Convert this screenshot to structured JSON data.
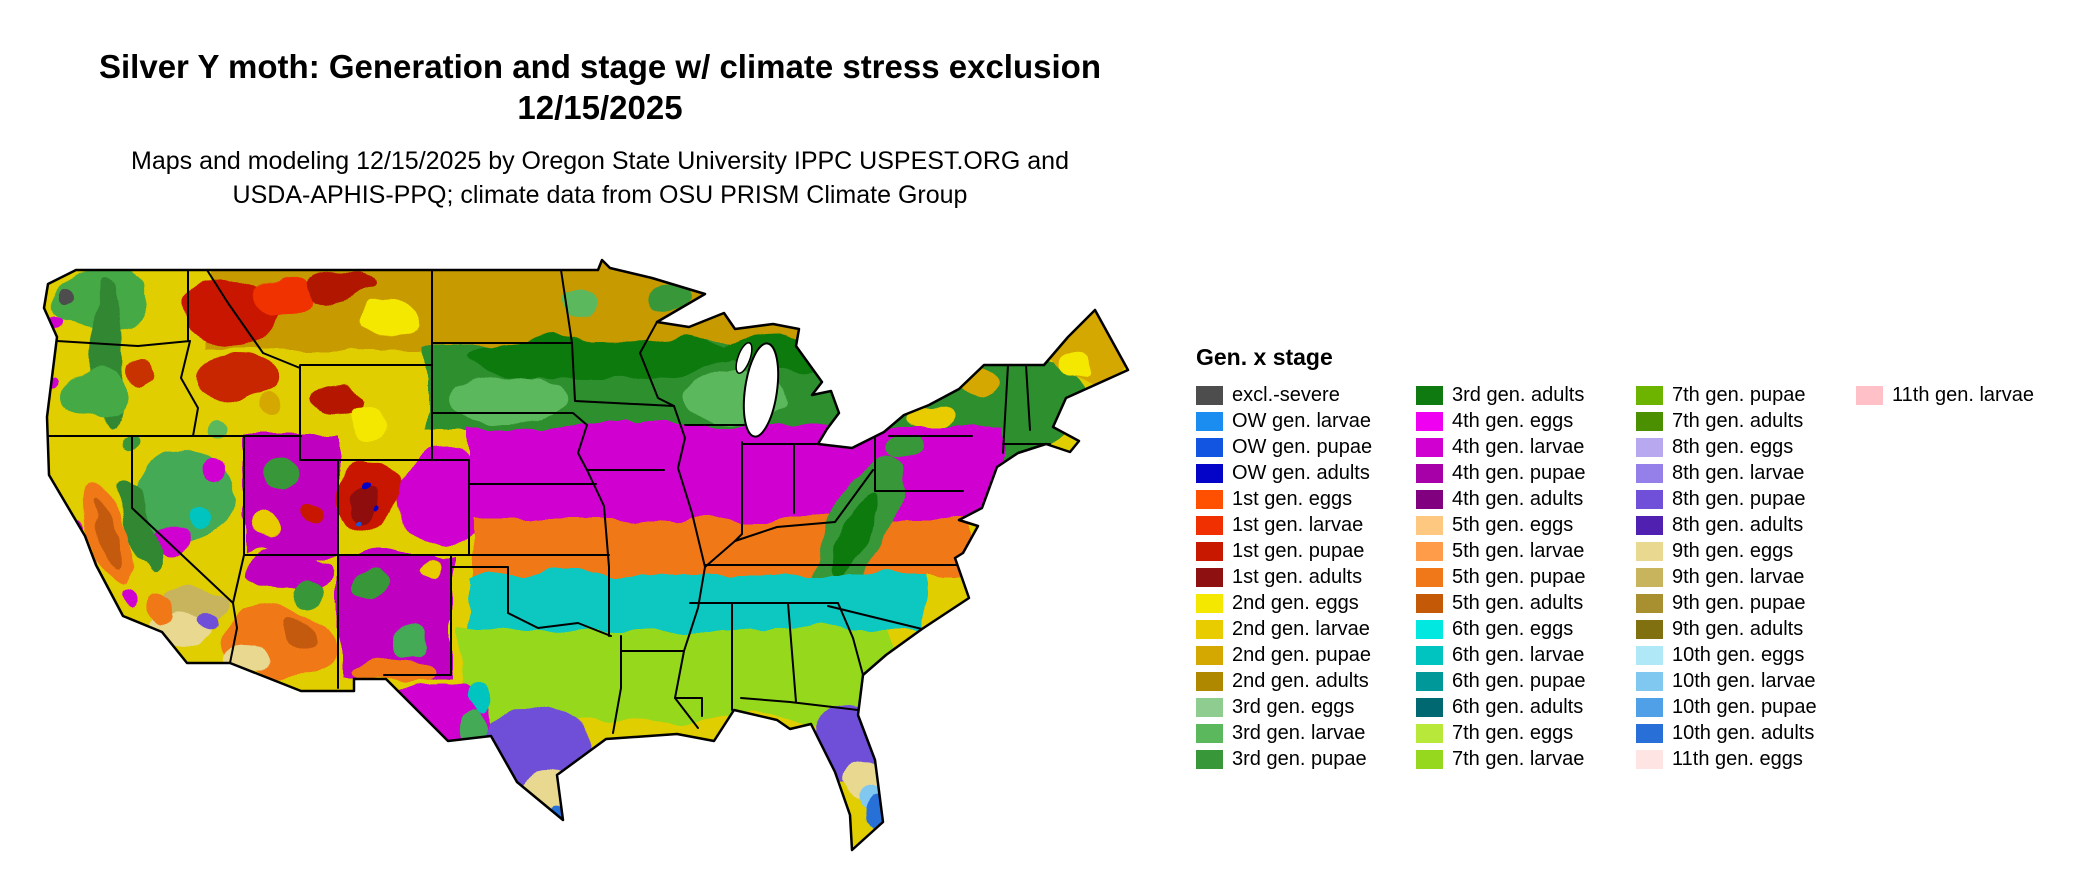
{
  "title": {
    "line1": "Silver Y moth: Generation and stage w/ climate stress exclusion",
    "line2": "12/15/2025"
  },
  "subtitle": {
    "line1": "Maps and modeling 12/15/2025 by Oregon State University IPPC USPEST.ORG and",
    "line2": "USDA-APHIS-PPQ; climate data from OSU PRISM Climate Group"
  },
  "map": {
    "region": "Contiguous United States",
    "kind": "generation and stage raster map with state boundaries"
  },
  "legend": {
    "title": "Gen. x stage",
    "column_counts": [
      15,
      15,
      15,
      1
    ],
    "items": [
      {
        "label": "excl.-severe",
        "color": "#4d4d4d"
      },
      {
        "label": "OW gen. larvae",
        "color": "#1b8cf0"
      },
      {
        "label": "OW gen. pupae",
        "color": "#1255e0"
      },
      {
        "label": "OW gen. adults",
        "color": "#0404c8"
      },
      {
        "label": "1st gen. eggs",
        "color": "#ff4f00"
      },
      {
        "label": "1st gen. larvae",
        "color": "#f03000"
      },
      {
        "label": "1st gen. pupae",
        "color": "#c81800"
      },
      {
        "label": "1st gen. adults",
        "color": "#8f1010"
      },
      {
        "label": "2nd gen. eggs",
        "color": "#f5e800"
      },
      {
        "label": "2nd gen. larvae",
        "color": "#e8cc00"
      },
      {
        "label": "2nd gen. pupae",
        "color": "#d4a800"
      },
      {
        "label": "2nd gen. adults",
        "color": "#b08800"
      },
      {
        "label": "3rd gen. eggs",
        "color": "#8fcc8f"
      },
      {
        "label": "3rd gen. larvae",
        "color": "#5cb85c"
      },
      {
        "label": "3rd gen. pupae",
        "color": "#389738"
      },
      {
        "label": "3rd gen. adults",
        "color": "#0f7a0f"
      },
      {
        "label": "4th gen. eggs",
        "color": "#f000f0"
      },
      {
        "label": "4th gen. larvae",
        "color": "#d000d0"
      },
      {
        "label": "4th gen. pupae",
        "color": "#a800a8"
      },
      {
        "label": "4th gen. adults",
        "color": "#800080"
      },
      {
        "label": "5th gen. eggs",
        "color": "#ffc880"
      },
      {
        "label": "5th gen. larvae",
        "color": "#ff9c4a"
      },
      {
        "label": "5th gen. pupae",
        "color": "#f07818"
      },
      {
        "label": "5th gen. adults",
        "color": "#c45a08"
      },
      {
        "label": "6th gen. eggs",
        "color": "#00e8e0"
      },
      {
        "label": "6th gen. larvae",
        "color": "#00c4c0"
      },
      {
        "label": "6th gen. pupae",
        "color": "#009898"
      },
      {
        "label": "6th gen. adults",
        "color": "#006870"
      },
      {
        "label": "7th gen. eggs",
        "color": "#b8e83a"
      },
      {
        "label": "7th gen. larvae",
        "color": "#96d81e"
      },
      {
        "label": "7th gen. pupae",
        "color": "#6cb400"
      },
      {
        "label": "7th gen. adults",
        "color": "#4a9000"
      },
      {
        "label": "8th gen. eggs",
        "color": "#b8a8f0"
      },
      {
        "label": "8th gen. larvae",
        "color": "#9480e8"
      },
      {
        "label": "8th gen. pupae",
        "color": "#7050d8"
      },
      {
        "label": "8th gen. adults",
        "color": "#5020b0"
      },
      {
        "label": "9th gen. eggs",
        "color": "#e8d890"
      },
      {
        "label": "9th gen. larvae",
        "color": "#c8b45c"
      },
      {
        "label": "9th gen. pupae",
        "color": "#a89030"
      },
      {
        "label": "9th gen. adults",
        "color": "#807010"
      },
      {
        "label": "10th gen. eggs",
        "color": "#b0e8f8"
      },
      {
        "label": "10th gen. larvae",
        "color": "#80c8f0"
      },
      {
        "label": "10th gen. pupae",
        "color": "#50a0e8"
      },
      {
        "label": "10th gen. adults",
        "color": "#2870d8"
      },
      {
        "label": "11th gen. eggs",
        "color": "#ffe4e4"
      },
      {
        "label": "11th gen. larvae",
        "color": "#ffc0c8"
      }
    ]
  }
}
